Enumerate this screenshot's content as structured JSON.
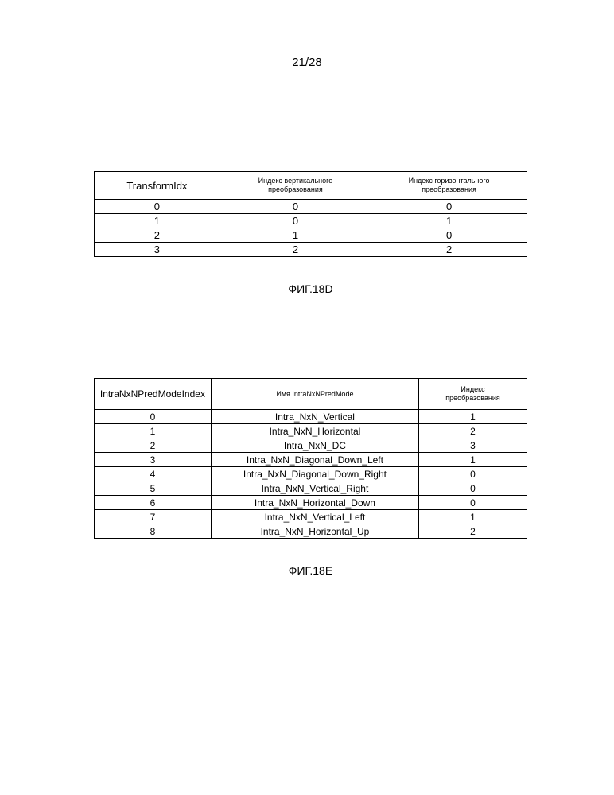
{
  "page_number": "21/28",
  "table1": {
    "type": "table",
    "border_color": "#000000",
    "background_color": "#ffffff",
    "header_fontsize_col1": 13,
    "header_fontsize_small": 9,
    "body_fontsize": 13,
    "columns": [
      {
        "label": "TransformIdx",
        "width_pct": 29
      },
      {
        "label": "Индекс вертикального\nпреобразования",
        "width_pct": 35
      },
      {
        "label": "Индекс горизонтального\nпреобразования",
        "width_pct": 36
      }
    ],
    "rows": [
      [
        "0",
        "0",
        "0"
      ],
      [
        "1",
        "0",
        "1"
      ],
      [
        "2",
        "1",
        "0"
      ],
      [
        "3",
        "2",
        "2"
      ]
    ],
    "caption": "ФИГ.18D"
  },
  "table2": {
    "type": "table",
    "border_color": "#000000",
    "background_color": "#ffffff",
    "header_fontsize_col1": 12,
    "header_fontsize_small": 9,
    "body_fontsize": 12,
    "columns": [
      {
        "label": "IntraNxNPredModeIndex",
        "width_pct": 27
      },
      {
        "label": "Имя IntraNxNPredMode",
        "width_pct": 48
      },
      {
        "label": "Индекс\nпреобразования",
        "width_pct": 25
      }
    ],
    "rows": [
      [
        "0",
        "Intra_NxN_Vertical",
        "1"
      ],
      [
        "1",
        "Intra_NxN_Horizontal",
        "2"
      ],
      [
        "2",
        "Intra_NxN_DC",
        "3"
      ],
      [
        "3",
        "Intra_NxN_Diagonal_Down_Left",
        "1"
      ],
      [
        "4",
        "Intra_NxN_Diagonal_Down_Right",
        "0"
      ],
      [
        "5",
        "Intra_NxN_Vertical_Right",
        "0"
      ],
      [
        "6",
        "Intra_NxN_Horizontal_Down",
        "0"
      ],
      [
        "7",
        "Intra_NxN_Vertical_Left",
        "1"
      ],
      [
        "8",
        "Intra_NxN_Horizontal_Up",
        "2"
      ]
    ],
    "caption": "ФИГ.18E"
  }
}
